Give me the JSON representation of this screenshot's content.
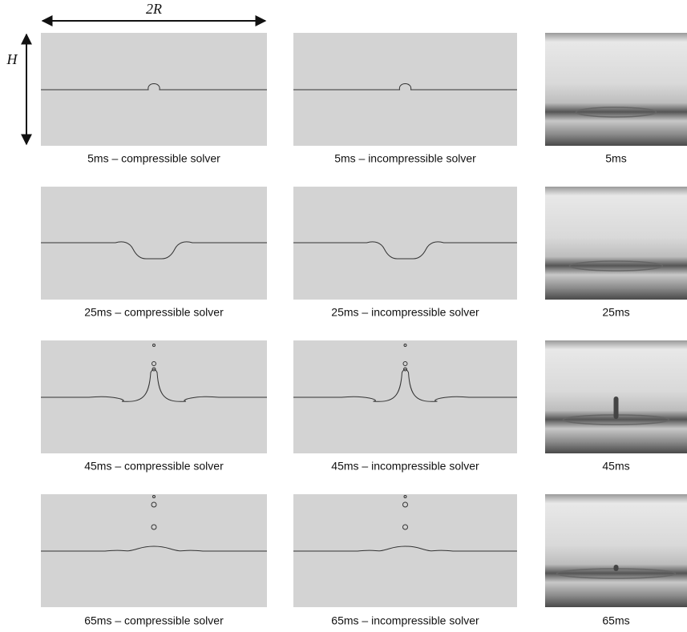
{
  "dimensions": {
    "width_label": "2R",
    "height_label": "H"
  },
  "rows": [
    {
      "captions": [
        "5ms – compressible solver",
        "5ms – incompressible solver",
        "5ms"
      ]
    },
    {
      "captions": [
        "25ms – compressible solver",
        "25ms – incompressible solver",
        "25ms"
      ]
    },
    {
      "captions": [
        "45ms – compressible solver",
        "45ms – incompressible solver",
        "45ms"
      ]
    },
    {
      "captions": [
        "65ms – compressible solver",
        "65ms – incompressible solver",
        "65ms"
      ]
    }
  ]
}
